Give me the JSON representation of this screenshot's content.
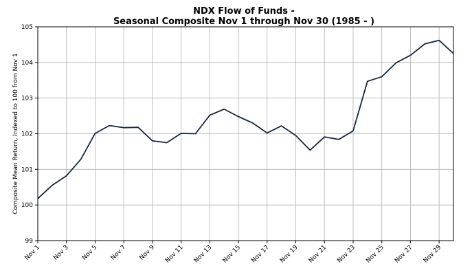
{
  "chart_data": {
    "type": "line",
    "title_line1": "NDX Flow of Funds -",
    "title_line2": "Seasonal Composite Nov 1 through Nov 30 (1985 - )",
    "ylabel": "Composite Mean Return, Indexed to 100 from Nov 1",
    "xlabel": "",
    "ylim": [
      99,
      105
    ],
    "yticks": [
      "99",
      "100",
      "101",
      "102",
      "103",
      "104",
      "105"
    ],
    "xlim": [
      1,
      30
    ],
    "xtick_positions": [
      1,
      3,
      5,
      7,
      9,
      11,
      13,
      15,
      17,
      19,
      21,
      23,
      25,
      27,
      29
    ],
    "xtick_labels": [
      "Nov 1",
      "Nov 3",
      "Nov 5",
      "Nov 7",
      "Nov 9",
      "Nov 11",
      "Nov 13",
      "Nov 15",
      "Nov 17",
      "Nov 19",
      "Nov 21",
      "Nov 23",
      "Nov 25",
      "Nov 27",
      "Nov 29"
    ],
    "grid": true,
    "series": [
      {
        "name": "Seasonal Composite",
        "color": "#14273e",
        "x": [
          1,
          2,
          3,
          4,
          5,
          6,
          7,
          8,
          9,
          10,
          11,
          12,
          13,
          14,
          15,
          16,
          17,
          18,
          19,
          20,
          21,
          22,
          23,
          24,
          25,
          26,
          27,
          28,
          29,
          30
        ],
        "values": [
          100.18,
          100.55,
          100.82,
          101.28,
          102.01,
          102.23,
          102.17,
          102.18,
          101.8,
          101.75,
          102.01,
          102.0,
          102.52,
          102.69,
          102.48,
          102.3,
          102.02,
          102.22,
          101.95,
          101.54,
          101.91,
          101.84,
          102.08,
          103.47,
          103.6,
          103.99,
          104.2,
          104.52,
          104.62,
          104.25
        ]
      }
    ]
  }
}
